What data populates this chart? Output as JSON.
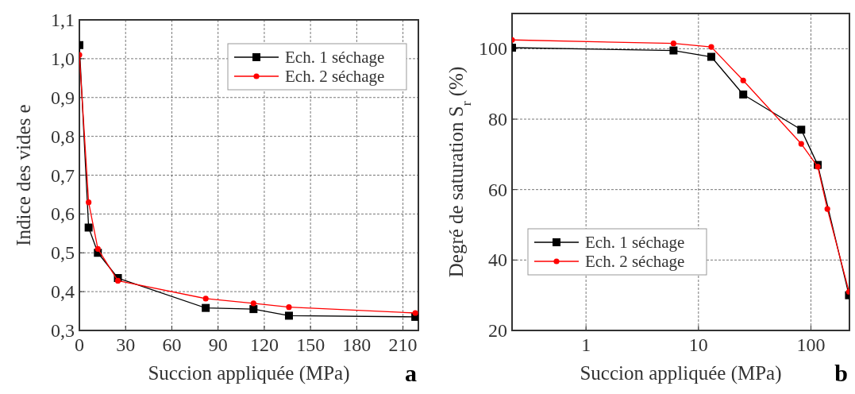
{
  "chart_data": [
    {
      "type": "line",
      "xlabel": "Succion appliquée (MPa)",
      "ylabel": "Indice des vides e",
      "annotations": [
        "a"
      ],
      "xlim": [
        0,
        220
      ],
      "xticks": [
        0,
        30,
        60,
        90,
        120,
        150,
        180,
        210
      ],
      "ylim": [
        0.3,
        1.1
      ],
      "yticks": [
        {
          "value": 0.3,
          "label": "0,3"
        },
        {
          "value": 0.4,
          "label": "0,4"
        },
        {
          "value": 0.5,
          "label": "0,5"
        },
        {
          "value": 0.6,
          "label": "0,6"
        },
        {
          "value": 0.7,
          "label": "0,7"
        },
        {
          "value": 0.8,
          "label": "0,8"
        },
        {
          "value": 0.9,
          "label": "0,9"
        },
        {
          "value": 1.0,
          "label": "1,0"
        },
        {
          "value": 1.1,
          "label": "1,1"
        }
      ],
      "grid": true,
      "legend": "top right",
      "series": [
        {
          "name": "Ech. 1 séchage",
          "color": "#000000",
          "marker": "square",
          "x": [
            0,
            6,
            12,
            25,
            82,
            113,
            136,
            218
          ],
          "values": [
            1.035,
            0.565,
            0.5,
            0.435,
            0.358,
            0.355,
            0.338,
            0.335
          ]
        },
        {
          "name": "Ech. 2 séchage",
          "color": "#ff0000",
          "marker": "circle",
          "x": [
            0,
            6,
            12,
            25,
            82,
            113,
            136,
            218
          ],
          "values": [
            1.01,
            0.63,
            0.51,
            0.428,
            0.382,
            0.37,
            0.36,
            0.345
          ]
        }
      ]
    },
    {
      "type": "line",
      "xlabel": "Succion appliquée (MPa)",
      "ylabel": "Degré de saturation S$_{r}$ (%)",
      "annotations": [
        "b"
      ],
      "log": "x",
      "xlim": [
        0.22,
        220
      ],
      "xticks": [
        1,
        10,
        100
      ],
      "ylim": [
        20,
        110
      ],
      "yticks": [
        20,
        40,
        60,
        80,
        100
      ],
      "grid": true,
      "legend": "bottom left",
      "series": [
        {
          "name": "Ech. 1 séchage",
          "color": "#000000",
          "marker": "square",
          "x": [
            0.22,
            6,
            13,
            25,
            82,
            115,
            218
          ],
          "values": [
            100.3,
            99.5,
            97.7,
            87,
            77,
            67,
            30
          ]
        },
        {
          "name": "Ech. 2 séchage",
          "color": "#ff0000",
          "marker": "circle",
          "x": [
            0.22,
            6,
            13,
            25,
            82,
            115,
            140,
            218
          ],
          "values": [
            102.5,
            101.5,
            100.5,
            91,
            73,
            66.5,
            54.5,
            31
          ]
        }
      ]
    }
  ]
}
